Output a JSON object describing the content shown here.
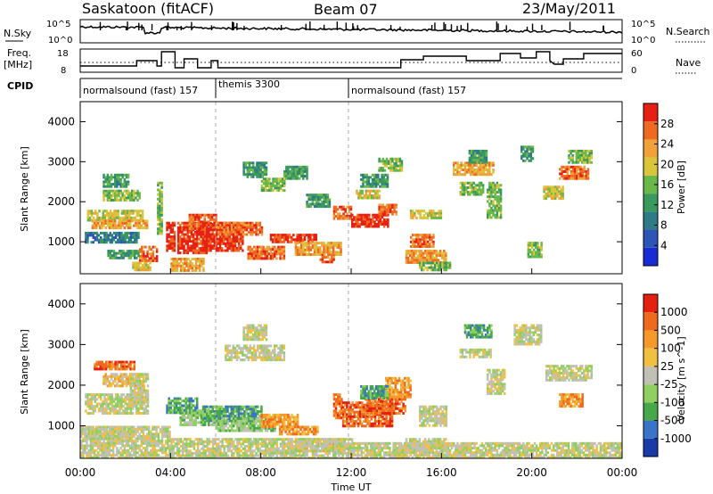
{
  "header": {
    "title": "Saskatoon (fitACF)",
    "beam": "Beam 07",
    "date": "23/May/2011"
  },
  "top_panels": {
    "nsky_label": "N.Sky",
    "nsky_ticks": [
      "10^5",
      "10^0"
    ],
    "nsearch_label": "N.Search",
    "freq_label": "Freq.",
    "freq_unit": "[MHz]",
    "freq_ticks": [
      "18",
      "8"
    ],
    "nave_ticks": [
      "60",
      "0"
    ],
    "nave_label": "Nave",
    "cpid_label": "CPID",
    "cpid_segments": [
      {
        "name": "normalsound (fast) 157"
      },
      {
        "name": "themis 3300"
      },
      {
        "name": "normalsound (fast) 157"
      }
    ]
  },
  "colors": {
    "power_scale": [
      "#1a2bd6",
      "#2d55b8",
      "#2e7a86",
      "#3a9a5e",
      "#6bb84a",
      "#d9c43a",
      "#f0a23a",
      "#ee6a22",
      "#e62012"
    ],
    "velocity_scale": [
      "#1a3aa8",
      "#3a74c8",
      "#46a848",
      "#8fd060",
      "#c0c0b4",
      "#f0c040",
      "#f59a2a",
      "#f06a1e",
      "#e42010"
    ],
    "ground_scatter": "#b8b8b0"
  },
  "chart_data": [
    {
      "type": "heatmap",
      "name": "power",
      "ylabel": "Slant Range [km]",
      "yticks": [
        "4000",
        "3000",
        "2000",
        "1000"
      ],
      "ylim": [
        200,
        4500
      ],
      "colorbar_label": "Power [dB]",
      "colorbar_ticks": [
        "28",
        "24",
        "20",
        "16",
        "12",
        "8",
        "4"
      ],
      "colorbar_range": [
        0,
        32
      ]
    },
    {
      "type": "heatmap",
      "name": "velocity",
      "ylabel": "Slant Range [km]",
      "yticks": [
        "4000",
        "3000",
        "2000",
        "1000"
      ],
      "ylim": [
        200,
        4500
      ],
      "colorbar_label": "Velocity [m s^-1]",
      "colorbar_ticks": [
        "1000",
        "500",
        "100",
        "25",
        "-25",
        "-100",
        "-500",
        "-1000"
      ]
    }
  ],
  "xaxis": {
    "label": "Time UT",
    "ticks": [
      "00:00",
      "04:00",
      "08:00",
      "12:00",
      "16:00",
      "20:00",
      "00:00"
    ]
  }
}
